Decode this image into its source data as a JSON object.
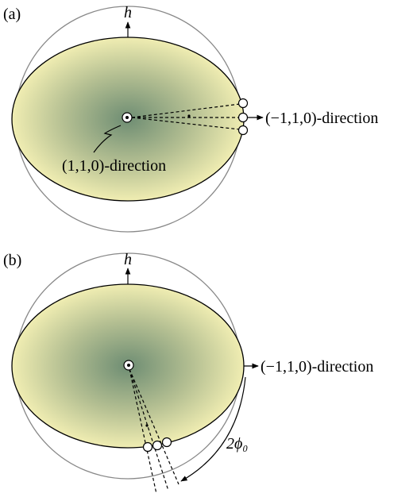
{
  "panels": [
    {
      "label": "(a)",
      "axis_label": "h",
      "center_label": "(1,1,0)-direction",
      "direction_label": "(−1,1,0)-direction"
    },
    {
      "label": "(b)",
      "axis_label": "h",
      "direction_label": "(−1,1,0)-direction",
      "angle_label": "2ϕ₀"
    }
  ]
}
